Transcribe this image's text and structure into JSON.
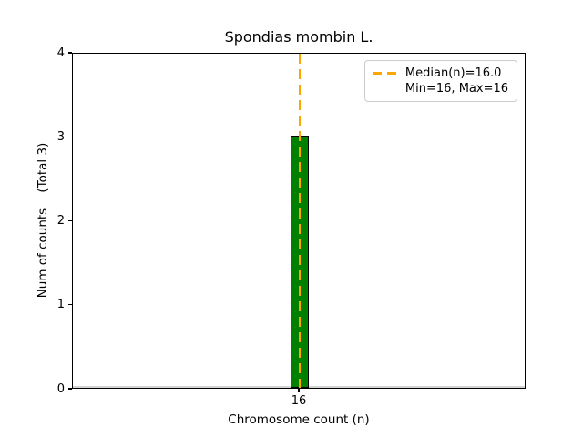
{
  "figure": {
    "title": "Spondias mombin L.",
    "xlabel": "Chromosome count (n)",
    "ylabel": "Num of counts    (Total 3)"
  },
  "legend": {
    "position": "upper right",
    "entries": [
      {
        "label": "Median(n)=16.0",
        "marker": "orange-dashed-line"
      },
      {
        "label": "Min=16, Max=16",
        "marker": "none"
      }
    ]
  },
  "chart_data": {
    "type": "bar",
    "title": "Spondias mombin L.",
    "xlabel": "Chromosome count (n)",
    "ylabel": "Num of counts    (Total 3)",
    "categories": [
      16
    ],
    "values": [
      3
    ],
    "total_counts": 3,
    "median_n": 16.0,
    "min_n": 16,
    "max_n": 16,
    "ylim": [
      0,
      4
    ],
    "yticks": [
      "0",
      "1",
      "2",
      "3",
      "4"
    ],
    "xticks": [
      "16"
    ],
    "grid": false,
    "legend_position": "upper right",
    "colors": {
      "bar_fill": "#008000",
      "bar_edge": "#000000",
      "median_line": "#FFA500",
      "zero_baseline": "#d4d4d4",
      "axis": "#000000",
      "legend_border": "#cccccc",
      "background": "#ffffff"
    }
  }
}
